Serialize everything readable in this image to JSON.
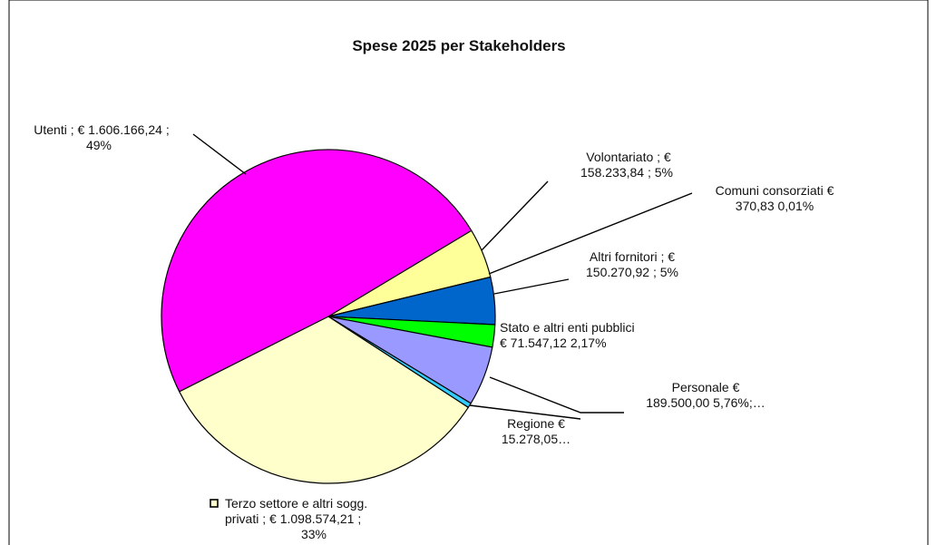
{
  "chart_data": {
    "type": "pie",
    "title": "Spese 2025 per Stakeholders",
    "slices": [
      {
        "name": "Volontariato",
        "value": 158233.84,
        "percent": 5,
        "color": "#FFFF99",
        "label_lines": [
          "Volontariato ; €",
          "158.233,84 ; 5%"
        ]
      },
      {
        "name": "Comuni consorziati",
        "value": 370.83,
        "percent": 0.01,
        "color": "#FFCC00",
        "label_lines": [
          "Comuni consorziati  €",
          "370,83  0,01%"
        ]
      },
      {
        "name": "Altri fornitori",
        "value": 150270.92,
        "percent": 5,
        "color": "#0066CC",
        "label_lines": [
          "Altri fornitori ; €",
          "150.270,92 ; 5%"
        ]
      },
      {
        "name": "Stato e altri enti pubblici",
        "value": 71547.12,
        "percent": 2.17,
        "color": "#00FF00",
        "label_lines": [
          "Stato e altri enti pubblici",
          "€ 71.547,12  2,17%"
        ]
      },
      {
        "name": "Personale",
        "value": 189500.0,
        "percent": 5.76,
        "color": "#9999FF",
        "label_lines": [
          "Personale  €",
          "189.500,00  5,76%;…"
        ]
      },
      {
        "name": "Regione",
        "value": 15278.05,
        "percent": 0.46,
        "color": "#33CCFF",
        "label_lines": [
          "Regione  €",
          "15.278,05…"
        ]
      },
      {
        "name": "Terzo settore e altri sogg. privati",
        "value": 1098574.21,
        "percent": 33,
        "color": "#FFFFCC",
        "label_lines": [
          "Terzo settore e altri sogg.",
          "privati ; € 1.098.574,21 ;",
          "33%"
        ]
      },
      {
        "name": "Utenti",
        "value": 1606166.24,
        "percent": 49,
        "color": "#FF00FF",
        "label_lines": [
          "Utenti ; € 1.606.166,24 ;",
          "49%"
        ]
      }
    ],
    "legend_marker_slice": "Terzo settore e altri sogg. privati",
    "legend_marker_color": "#FFFFCC"
  }
}
